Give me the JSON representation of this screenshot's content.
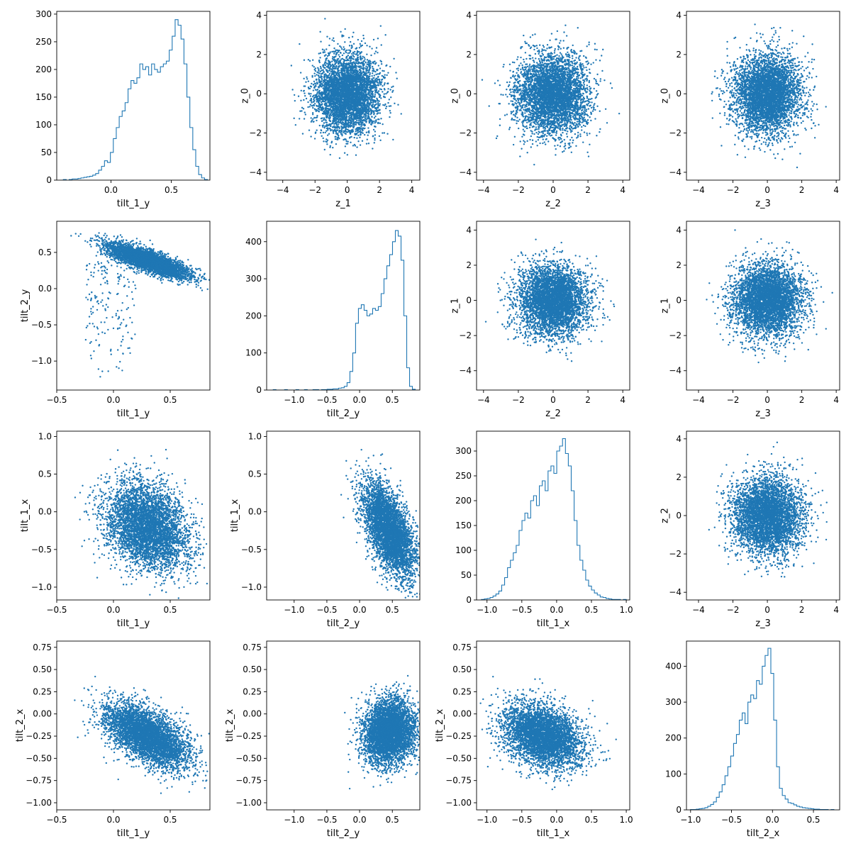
{
  "figure": {
    "colors": {
      "accent": "#1f77b4",
      "axes": "#000000",
      "background": "#ffffff"
    }
  },
  "chart_data": [
    {
      "id": "r0c0",
      "type": "histogram",
      "xlabel": "tilt_1_y",
      "ylabel": "",
      "xlim": [
        -0.45,
        0.82
      ],
      "ylim": [
        0,
        305
      ],
      "xticks": [
        0.0,
        0.5
      ],
      "xtick_labels": [
        "0.0",
        "0.5"
      ],
      "yticks": [
        0,
        50,
        100,
        150,
        200,
        250,
        300
      ],
      "ytick_labels": [
        "0",
        "50",
        "100",
        "150",
        "200",
        "250",
        "300"
      ],
      "bin_range": [
        -0.42,
        0.8
      ],
      "values": [
        0,
        1,
        0,
        1,
        2,
        2,
        3,
        4,
        5,
        6,
        7,
        9,
        12,
        18,
        25,
        35,
        32,
        50,
        75,
        95,
        115,
        125,
        140,
        165,
        180,
        175,
        185,
        210,
        200,
        205,
        190,
        210,
        200,
        195,
        205,
        210,
        215,
        235,
        260,
        290,
        280,
        255,
        210,
        150,
        95,
        55,
        25,
        10,
        4,
        1
      ]
    },
    {
      "id": "r0c1",
      "type": "scatter",
      "xlabel": "z_1",
      "ylabel": "z_0",
      "xlim": [
        -5.0,
        4.5
      ],
      "ylim": [
        -4.4,
        4.2
      ],
      "xticks": [
        -4,
        -2,
        0,
        2,
        4
      ],
      "xtick_labels": [
        "−4",
        "−2",
        "0",
        "2",
        "4"
      ],
      "yticks": [
        -4,
        -2,
        0,
        2,
        4
      ],
      "ytick_labels": [
        "−4",
        "−2",
        "0",
        "2",
        "4"
      ],
      "distribution": {
        "kind": "gaussian",
        "mean": [
          0.0,
          0.0
        ],
        "std": [
          1.0,
          1.0
        ],
        "points": 4500,
        "seed": 11
      }
    },
    {
      "id": "r0c2",
      "type": "scatter",
      "xlabel": "z_2",
      "ylabel": "z_0",
      "xlim": [
        -4.4,
        4.4
      ],
      "ylim": [
        -4.4,
        4.2
      ],
      "xticks": [
        -4,
        -2,
        0,
        2,
        4
      ],
      "xtick_labels": [
        "−4",
        "−2",
        "0",
        "2",
        "4"
      ],
      "yticks": [
        -4,
        -2,
        0,
        2,
        4
      ],
      "ytick_labels": [
        "−4",
        "−2",
        "0",
        "2",
        "4"
      ],
      "distribution": {
        "kind": "gaussian",
        "mean": [
          0.0,
          0.0
        ],
        "std": [
          1.0,
          1.0
        ],
        "points": 4500,
        "seed": 12
      }
    },
    {
      "id": "r0c3",
      "type": "scatter",
      "xlabel": "z_3",
      "ylabel": "z_0",
      "xlim": [
        -4.7,
        4.2
      ],
      "ylim": [
        -4.4,
        4.2
      ],
      "xticks": [
        -4,
        -2,
        0,
        2,
        4
      ],
      "xtick_labels": [
        "−4",
        "−2",
        "0",
        "2",
        "4"
      ],
      "yticks": [
        -4,
        -2,
        0,
        2,
        4
      ],
      "ytick_labels": [
        "−4",
        "−2",
        "0",
        "2",
        "4"
      ],
      "distribution": {
        "kind": "gaussian",
        "mean": [
          0.0,
          0.0
        ],
        "std": [
          1.0,
          1.0
        ],
        "points": 4500,
        "seed": 13
      }
    },
    {
      "id": "r1c0",
      "type": "scatter",
      "xlabel": "tilt_1_y",
      "ylabel": "tilt_2_y",
      "xlim": [
        -0.5,
        0.85
      ],
      "ylim": [
        -1.4,
        0.93
      ],
      "xticks": [
        -0.5,
        0.0,
        0.5
      ],
      "xtick_labels": [
        "−0.5",
        "0.0",
        "0.5"
      ],
      "yticks": [
        -1.0,
        -0.5,
        0.0,
        0.5
      ],
      "ytick_labels": [
        "−1.0",
        "−0.5",
        "0.0",
        "0.5"
      ],
      "distribution": {
        "kind": "banana",
        "x_center": 0.3,
        "x_std": 0.18,
        "y_at_xmin": 0.78,
        "y_at_xmax": 0.15,
        "x_ref": [
          -0.45,
          0.75
        ],
        "y_std": 0.07,
        "tail_fraction": 0.04,
        "tail_x_range": [
          -0.25,
          0.2
        ],
        "tail_y_range": [
          -1.3,
          0.4
        ],
        "points": 4500,
        "seed": 21
      }
    },
    {
      "id": "r1c1",
      "type": "histogram",
      "xlabel": "tilt_2_y",
      "ylabel": "",
      "xlim": [
        -1.42,
        0.92
      ],
      "ylim": [
        0,
        455
      ],
      "xticks": [
        -1.0,
        -0.5,
        0.0,
        0.5
      ],
      "xtick_labels": [
        "−1.0",
        "−0.5",
        "0.0",
        "0.5"
      ],
      "yticks": [
        0,
        100,
        200,
        300,
        400
      ],
      "ytick_labels": [
        "0",
        "100",
        "200",
        "300",
        "400"
      ],
      "bin_range": [
        -1.32,
        0.85
      ],
      "values": [
        1,
        0,
        0,
        0,
        1,
        0,
        0,
        0,
        1,
        0,
        0,
        1,
        0,
        0,
        1,
        1,
        0,
        1,
        1,
        2,
        2,
        3,
        3,
        5,
        6,
        10,
        20,
        50,
        100,
        180,
        220,
        230,
        215,
        200,
        205,
        220,
        215,
        225,
        260,
        300,
        335,
        365,
        400,
        430,
        415,
        350,
        200,
        60,
        10,
        2
      ]
    },
    {
      "id": "r1c2",
      "type": "scatter",
      "xlabel": "z_2",
      "ylabel": "z_1",
      "xlim": [
        -4.4,
        4.4
      ],
      "ylim": [
        -5.1,
        4.5
      ],
      "xticks": [
        -4,
        -2,
        0,
        2,
        4
      ],
      "xtick_labels": [
        "−4",
        "−2",
        "0",
        "2",
        "4"
      ],
      "yticks": [
        -4,
        -2,
        0,
        2,
        4
      ],
      "ytick_labels": [
        "−4",
        "−2",
        "0",
        "2",
        "4"
      ],
      "distribution": {
        "kind": "gaussian",
        "mean": [
          0.0,
          0.0
        ],
        "std": [
          1.0,
          1.0
        ],
        "points": 4500,
        "seed": 22
      }
    },
    {
      "id": "r1c3",
      "type": "scatter",
      "xlabel": "z_3",
      "ylabel": "z_1",
      "xlim": [
        -4.7,
        4.2
      ],
      "ylim": [
        -5.1,
        4.5
      ],
      "xticks": [
        -4,
        -2,
        0,
        2,
        4
      ],
      "xtick_labels": [
        "−4",
        "−2",
        "0",
        "2",
        "4"
      ],
      "yticks": [
        -4,
        -2,
        0,
        2,
        4
      ],
      "ytick_labels": [
        "−4",
        "−2",
        "0",
        "2",
        "4"
      ],
      "distribution": {
        "kind": "gaussian",
        "mean": [
          0.0,
          0.0
        ],
        "std": [
          1.0,
          1.0
        ],
        "points": 4500,
        "seed": 23
      }
    },
    {
      "id": "r2c0",
      "type": "scatter",
      "xlabel": "tilt_1_y",
      "ylabel": "tilt_1_x",
      "xlim": [
        -0.5,
        0.85
      ],
      "ylim": [
        -1.17,
        1.07
      ],
      "xticks": [
        -0.5,
        0.0,
        0.5
      ],
      "xtick_labels": [
        "−0.5",
        "0.0",
        "0.5"
      ],
      "yticks": [
        -1.0,
        -0.5,
        0.0,
        0.5,
        1.0
      ],
      "ytick_labels": [
        "−1.0",
        "−0.5",
        "0.0",
        "0.5",
        "1.0"
      ],
      "distribution": {
        "kind": "correlated",
        "mean": [
          0.3,
          -0.2
        ],
        "std": [
          0.18,
          0.28
        ],
        "slope": -0.4,
        "points": 4500,
        "seed": 31
      }
    },
    {
      "id": "r2c1",
      "type": "scatter",
      "xlabel": "tilt_2_y",
      "ylabel": "tilt_1_x",
      "xlim": [
        -1.42,
        0.92
      ],
      "ylim": [
        -1.17,
        1.07
      ],
      "xticks": [
        -1.0,
        -0.5,
        0.0,
        0.5
      ],
      "xtick_labels": [
        "−1.0",
        "−0.5",
        "0.0",
        "0.5"
      ],
      "yticks": [
        -1.0,
        -0.5,
        0.0,
        0.5,
        1.0
      ],
      "ytick_labels": [
        "−1.0",
        "−0.5",
        "0.0",
        "0.5",
        "1.0"
      ],
      "distribution": {
        "kind": "correlated",
        "mean": [
          0.45,
          -0.25
        ],
        "std": [
          0.2,
          0.25
        ],
        "slope": -0.9,
        "points": 4500,
        "seed": 32
      }
    },
    {
      "id": "r2c2",
      "type": "histogram",
      "xlabel": "tilt_1_x",
      "ylabel": "",
      "xlim": [
        -1.15,
        1.05
      ],
      "ylim": [
        0,
        340
      ],
      "xticks": [
        -1.0,
        -0.5,
        0.0,
        0.5,
        1.0
      ],
      "xtick_labels": [
        "−1.0",
        "−0.5",
        "0.0",
        "0.5",
        "1.0"
      ],
      "yticks": [
        0,
        50,
        100,
        150,
        200,
        250,
        300
      ],
      "ytick_labels": [
        "0",
        "50",
        "100",
        "150",
        "200",
        "250",
        "300"
      ],
      "bin_range": [
        -1.08,
        1.0
      ],
      "values": [
        1,
        2,
        3,
        5,
        8,
        12,
        18,
        30,
        45,
        65,
        80,
        95,
        110,
        140,
        160,
        175,
        165,
        200,
        210,
        190,
        230,
        240,
        220,
        260,
        270,
        255,
        300,
        310,
        325,
        295,
        270,
        220,
        160,
        110,
        80,
        60,
        40,
        28,
        20,
        14,
        10,
        6,
        5,
        3,
        2,
        1,
        1,
        1,
        0,
        1
      ]
    },
    {
      "id": "r2c3",
      "type": "scatter",
      "xlabel": "z_3",
      "ylabel": "z_2",
      "xlim": [
        -4.7,
        4.2
      ],
      "ylim": [
        -4.4,
        4.4
      ],
      "xticks": [
        -4,
        -2,
        0,
        2,
        4
      ],
      "xtick_labels": [
        "−4",
        "−2",
        "0",
        "2",
        "4"
      ],
      "yticks": [
        -4,
        -2,
        0,
        2,
        4
      ],
      "ytick_labels": [
        "−4",
        "−2",
        "0",
        "2",
        "4"
      ],
      "distribution": {
        "kind": "gaussian",
        "mean": [
          0.0,
          0.0
        ],
        "std": [
          1.0,
          1.0
        ],
        "points": 4500,
        "seed": 33
      }
    },
    {
      "id": "r3c0",
      "type": "scatter",
      "xlabel": "tilt_1_y",
      "ylabel": "tilt_2_x",
      "xlim": [
        -0.5,
        0.85
      ],
      "ylim": [
        -1.08,
        0.82
      ],
      "xticks": [
        -0.5,
        0.0,
        0.5
      ],
      "xtick_labels": [
        "−0.5",
        "0.0",
        "0.5"
      ],
      "yticks": [
        -1.0,
        -0.75,
        -0.5,
        -0.25,
        0.0,
        0.25,
        0.5,
        0.75
      ],
      "ytick_labels": [
        "−1.00",
        "−0.75",
        "−0.50",
        "−0.25",
        "0.00",
        "0.25",
        "0.50",
        "0.75"
      ],
      "distribution": {
        "kind": "correlated",
        "mean": [
          0.3,
          -0.25
        ],
        "std": [
          0.18,
          0.15
        ],
        "slope": -0.55,
        "points": 4500,
        "seed": 41
      }
    },
    {
      "id": "r3c1",
      "type": "scatter",
      "xlabel": "tilt_2_y",
      "ylabel": "tilt_2_x",
      "xlim": [
        -1.42,
        0.92
      ],
      "ylim": [
        -1.08,
        0.82
      ],
      "xticks": [
        -1.0,
        -0.5,
        0.0,
        0.5
      ],
      "xtick_labels": [
        "−1.0",
        "−0.5",
        "0.0",
        "0.5"
      ],
      "yticks": [
        -1.0,
        -0.75,
        -0.5,
        -0.25,
        0.0,
        0.25,
        0.5,
        0.75
      ],
      "ytick_labels": [
        "−1.00",
        "−0.75",
        "−0.50",
        "−0.25",
        "0.00",
        "0.25",
        "0.50",
        "0.75"
      ],
      "distribution": {
        "kind": "correlated",
        "mean": [
          0.45,
          -0.2
        ],
        "std": [
          0.2,
          0.18
        ],
        "slope": 0.1,
        "points": 4500,
        "seed": 42
      }
    },
    {
      "id": "r3c2",
      "type": "scatter",
      "xlabel": "tilt_1_x",
      "ylabel": "tilt_2_x",
      "xlim": [
        -1.15,
        1.05
      ],
      "ylim": [
        -1.08,
        0.82
      ],
      "xticks": [
        -1.0,
        -0.5,
        0.0,
        0.5,
        1.0
      ],
      "xtick_labels": [
        "−1.0",
        "−0.5",
        "0.0",
        "0.5",
        "1.0"
      ],
      "yticks": [
        -1.0,
        -0.75,
        -0.5,
        -0.25,
        0.0,
        0.25,
        0.5,
        0.75
      ],
      "ytick_labels": [
        "−1.00",
        "−0.75",
        "−0.50",
        "−0.25",
        "0.00",
        "0.25",
        "0.50",
        "0.75"
      ],
      "distribution": {
        "kind": "correlated",
        "mean": [
          -0.2,
          -0.25
        ],
        "std": [
          0.28,
          0.17
        ],
        "slope": -0.2,
        "points": 4500,
        "seed": 43
      }
    },
    {
      "id": "r3c3",
      "type": "histogram",
      "xlabel": "tilt_2_x",
      "ylabel": "",
      "xlim": [
        -1.05,
        0.82
      ],
      "ylim": [
        0,
        470
      ],
      "xticks": [
        -1.0,
        -0.5,
        0.0,
        0.5
      ],
      "xtick_labels": [
        "−1.0",
        "−0.5",
        "0.0",
        "0.5"
      ],
      "yticks": [
        0,
        100,
        200,
        300,
        400
      ],
      "ytick_labels": [
        "0",
        "100",
        "200",
        "300",
        "400"
      ],
      "bin_range": [
        -1.0,
        0.75
      ],
      "values": [
        1,
        1,
        2,
        3,
        4,
        6,
        10,
        15,
        22,
        35,
        50,
        70,
        95,
        120,
        150,
        185,
        210,
        250,
        270,
        240,
        300,
        320,
        310,
        360,
        350,
        400,
        430,
        450,
        380,
        250,
        120,
        60,
        40,
        30,
        20,
        18,
        14,
        10,
        8,
        6,
        5,
        4,
        3,
        2,
        2,
        1,
        1,
        1,
        0,
        1
      ]
    }
  ]
}
